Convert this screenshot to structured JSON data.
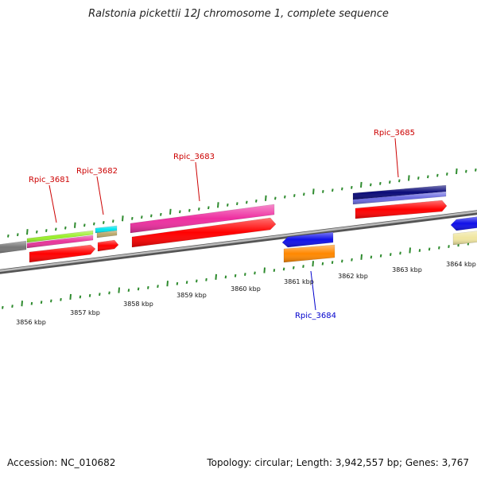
{
  "title": "Ralstonia pickettii 12J chromosome 1, complete sequence",
  "footer": {
    "accession": "Accession: NC_010682",
    "summary": "Topology: circular; Length: 3,942,557 bp; Genes: 3,767"
  },
  "colors": {
    "backbone": "#8a8a8a",
    "tick": "#2e8b2e",
    "forward_label": "#cc0000",
    "reverse_label": "#0000cc"
  },
  "scale": {
    "unit": "kbp",
    "labels": [
      "3856 kbp",
      "3857 kbp",
      "3858 kbp",
      "3859 kbp",
      "3860 kbp",
      "3861 kbp",
      "3862 kbp",
      "3863 kbp",
      "3864 kbp"
    ]
  },
  "gene_labels": [
    {
      "name": "Rpic_3681",
      "strand": "forward"
    },
    {
      "name": "Rpic_3682",
      "strand": "forward"
    },
    {
      "name": "Rpic_3683",
      "strand": "forward"
    },
    {
      "name": "Rpic_3684",
      "strand": "reverse"
    },
    {
      "name": "Rpic_3685",
      "strand": "forward"
    }
  ],
  "features": [
    {
      "name": "gene-partial-left-grey",
      "color": "#777777"
    },
    {
      "name": "gene-3681-cds-green",
      "color": "#9aef2a"
    },
    {
      "name": "gene-3681-cds-pink",
      "color": "#e8349a"
    },
    {
      "name": "gene-3681-gene",
      "color": "#ff0000"
    },
    {
      "name": "gene-3682-cds-cyan",
      "color": "#00e5ee"
    },
    {
      "name": "gene-3682-cds-khaki",
      "color": "#b9a768"
    },
    {
      "name": "gene-3682-gene",
      "color": "#ff0000"
    },
    {
      "name": "gene-3683-cds",
      "color": "#ee2ea0"
    },
    {
      "name": "gene-3683-gene",
      "color": "#ff0000"
    },
    {
      "name": "gene-3684-cds",
      "color": "#1010e8"
    },
    {
      "name": "gene-3684-gene",
      "color": "#ff8800"
    },
    {
      "name": "gene-3685-cds-navy",
      "color": "#0a0a78"
    },
    {
      "name": "gene-3685-cds-slate",
      "color": "#6a6ae0"
    },
    {
      "name": "gene-3685-gene",
      "color": "#ff0000"
    },
    {
      "name": "gene-partial-right-blue",
      "color": "#1010e8"
    },
    {
      "name": "gene-partial-right-beige",
      "color": "#f0e6a0"
    }
  ]
}
